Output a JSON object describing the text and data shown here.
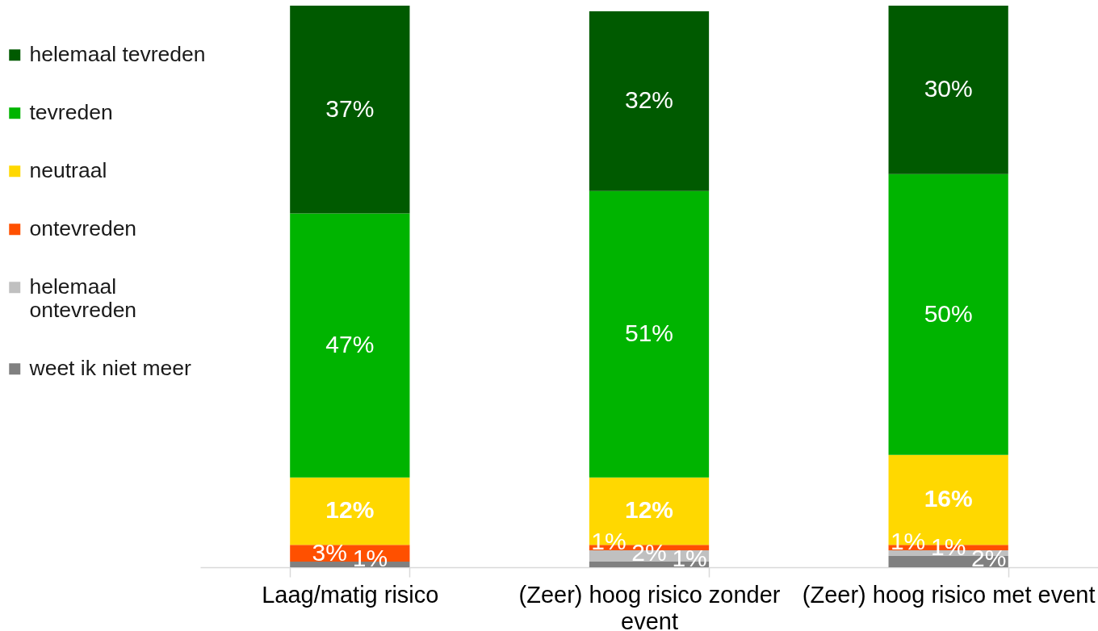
{
  "chart_data": {
    "type": "bar",
    "stacked": true,
    "legend": "left",
    "ylim": [
      0,
      100
    ],
    "categories": [
      "Laag/matig risico",
      "(Zeer) hoog risico zonder event",
      "(Zeer) hoog risico met event"
    ],
    "series": [
      {
        "name": "weet ik niet meer",
        "color": "#808080",
        "values": [
          1,
          1,
          2
        ],
        "value_labels": [
          "1%",
          "1%",
          "2%"
        ]
      },
      {
        "name": "helemaal ontevreden",
        "color": "#c0c0c0",
        "values": [
          null,
          2,
          1
        ],
        "value_labels": [
          null,
          "2%",
          "1%"
        ]
      },
      {
        "name": "ontevreden",
        "color": "#ff5000",
        "values": [
          3,
          1,
          1
        ],
        "value_labels": [
          "3%",
          "1%",
          "1%"
        ]
      },
      {
        "name": "neutraal",
        "color": "#ffd800",
        "values": [
          12,
          12,
          16
        ],
        "value_labels": [
          "12%",
          "12%",
          "16%"
        ]
      },
      {
        "name": "tevreden",
        "color": "#00b400",
        "values": [
          47,
          51,
          50
        ],
        "value_labels": [
          "47%",
          "51%",
          "50%"
        ]
      },
      {
        "name": "helemaal tevreden",
        "color": "#005a00",
        "values": [
          37,
          32,
          30
        ],
        "value_labels": [
          "37%",
          "32%",
          "30%"
        ]
      }
    ]
  }
}
